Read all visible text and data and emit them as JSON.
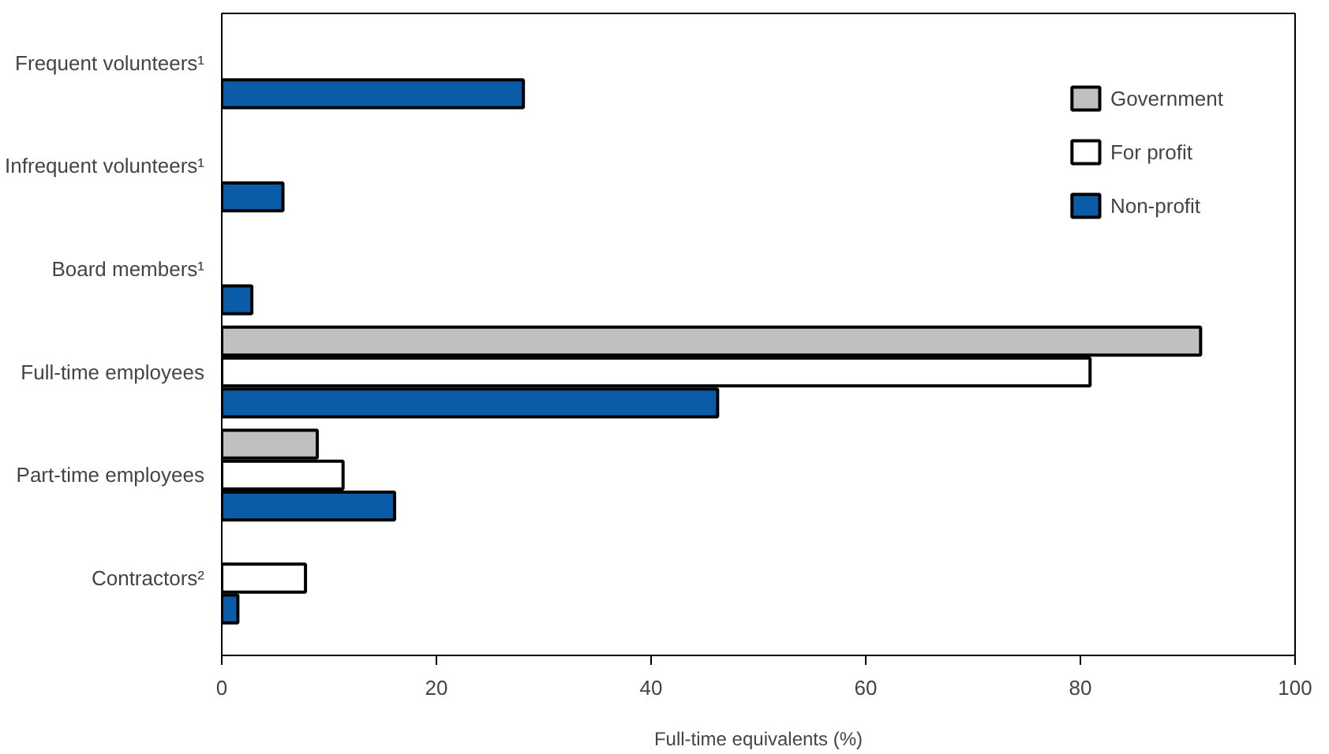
{
  "chart_data": {
    "type": "bar",
    "orientation": "horizontal",
    "xlabel": "Full-time equivalents (%)",
    "categories": [
      "Frequent volunteers¹",
      "Infrequent volunteers¹",
      "Board members¹",
      "Full-time employees",
      "Part-time employees",
      "Contractors²"
    ],
    "series": [
      {
        "name": "Government",
        "color": "#c0c0c0",
        "values": [
          null,
          null,
          null,
          91.2,
          8.9,
          null
        ]
      },
      {
        "name": "For profit",
        "color": "#ffffff",
        "values": [
          null,
          null,
          null,
          80.9,
          11.3,
          7.8
        ]
      },
      {
        "name": "Non-profit",
        "color": "#0a5ca8",
        "values": [
          28.1,
          5.7,
          2.8,
          46.2,
          16.1,
          1.5
        ]
      }
    ],
    "xlim": [
      0,
      100
    ],
    "xticks": [
      0,
      20,
      40,
      60,
      80,
      100
    ],
    "grid": false,
    "legend": "top right"
  }
}
